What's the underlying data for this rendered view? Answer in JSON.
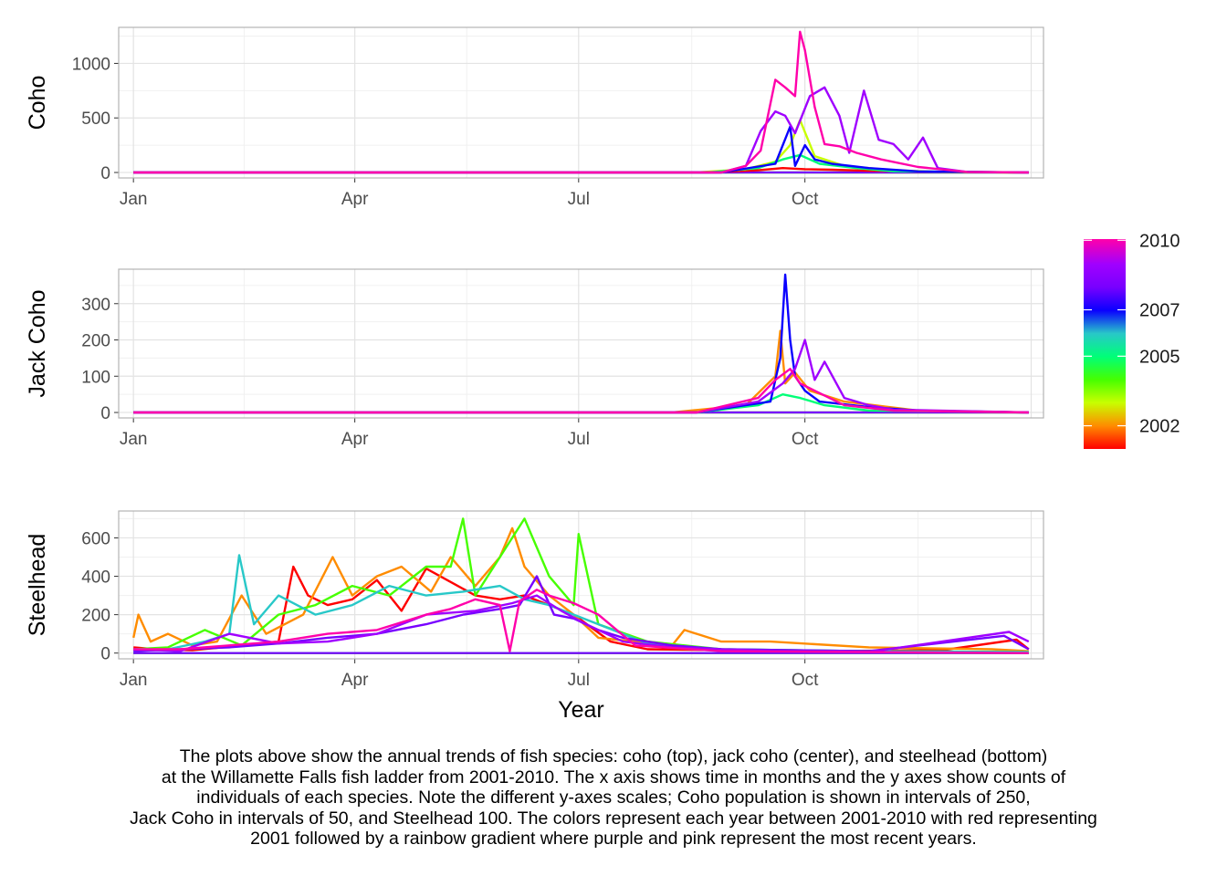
{
  "colors": {
    "y2001": "#ff0000",
    "y2002": "#ff8c00",
    "y2003": "#c8ff00",
    "y2004": "#46ff00",
    "y2005": "#00ff78",
    "y2006": "#28c8c8",
    "y2007": "#0a00ff",
    "y2008": "#7800ff",
    "y2009": "#a000ff",
    "y2010": "#ff00aa"
  },
  "chart_data": [
    {
      "type": "line",
      "ylabel": "Coho",
      "ylim": [
        -50,
        1330
      ],
      "yticks": [
        0,
        500,
        1000
      ],
      "xticks": [
        "Jan",
        "Apr",
        "Jul",
        "Oct"
      ],
      "xtick_days": [
        1,
        91,
        182,
        274
      ],
      "series": [
        {
          "year": 2001,
          "color": "y2001",
          "x": [
            1,
            225,
            240,
            255,
            265,
            274,
            285,
            300,
            330,
            365
          ],
          "y": [
            0,
            0,
            5,
            20,
            40,
            30,
            25,
            15,
            5,
            0
          ]
        },
        {
          "year": 2003,
          "color": "y2003",
          "x": [
            1,
            230,
            250,
            262,
            268,
            272,
            278,
            290,
            310,
            330,
            365
          ],
          "y": [
            0,
            0,
            30,
            100,
            250,
            480,
            150,
            60,
            20,
            5,
            0
          ]
        },
        {
          "year": 2005,
          "color": "y2005",
          "x": [
            1,
            235,
            255,
            265,
            272,
            280,
            295,
            310,
            365
          ],
          "y": [
            0,
            0,
            40,
            120,
            160,
            80,
            40,
            10,
            0
          ]
        },
        {
          "year": 2007,
          "color": "y2007",
          "x": [
            1,
            240,
            262,
            268,
            270,
            274,
            278,
            285,
            300,
            320,
            365
          ],
          "y": [
            0,
            0,
            80,
            420,
            60,
            250,
            120,
            80,
            40,
            10,
            0
          ]
        },
        {
          "year": 2009,
          "color": "y2009",
          "x": [
            1,
            240,
            250,
            256,
            262,
            266,
            270,
            276,
            282,
            288,
            292,
            298,
            304,
            310,
            316,
            322,
            328,
            340,
            365
          ],
          "y": [
            0,
            0,
            60,
            380,
            560,
            520,
            360,
            700,
            780,
            520,
            180,
            750,
            300,
            260,
            120,
            320,
            40,
            5,
            0
          ]
        },
        {
          "year": 2010,
          "color": "y2010",
          "x": [
            1,
            240,
            250,
            256,
            262,
            266,
            270,
            272,
            274,
            278,
            282,
            288,
            295,
            305,
            320,
            340,
            365
          ],
          "y": [
            0,
            0,
            60,
            200,
            850,
            780,
            700,
            1290,
            1120,
            600,
            260,
            240,
            180,
            120,
            50,
            5,
            0
          ]
        }
      ]
    },
    {
      "type": "line",
      "ylabel": "Jack Coho",
      "ylim": [
        -15,
        395
      ],
      "yticks": [
        0,
        100,
        200,
        300
      ],
      "xticks": [
        "Jan",
        "Apr",
        "Jul",
        "Oct"
      ],
      "xtick_days": [
        1,
        91,
        182,
        274
      ],
      "series": [
        {
          "year": 2002,
          "color": "y2002",
          "x": [
            1,
            220,
            250,
            262,
            264,
            266,
            270,
            276,
            290,
            320,
            365
          ],
          "y": [
            0,
            0,
            20,
            100,
            225,
            80,
            110,
            60,
            30,
            5,
            0
          ]
        },
        {
          "year": 2005,
          "color": "y2005",
          "x": [
            1,
            230,
            255,
            265,
            272,
            282,
            300,
            365
          ],
          "y": [
            0,
            0,
            20,
            50,
            40,
            20,
            5,
            0
          ]
        },
        {
          "year": 2007,
          "color": "y2007",
          "x": [
            1,
            230,
            260,
            264,
            266,
            268,
            270,
            274,
            280,
            300,
            320,
            365
          ],
          "y": [
            0,
            0,
            30,
            150,
            380,
            200,
            100,
            60,
            30,
            15,
            5,
            0
          ]
        },
        {
          "year": 2009,
          "color": "y2009",
          "x": [
            1,
            230,
            255,
            265,
            270,
            274,
            278,
            282,
            290,
            300,
            310,
            365
          ],
          "y": [
            0,
            0,
            30,
            80,
            120,
            200,
            90,
            140,
            40,
            20,
            8,
            0
          ]
        },
        {
          "year": 2010,
          "color": "y2010",
          "x": [
            1,
            230,
            255,
            262,
            268,
            272,
            278,
            290,
            310,
            365
          ],
          "y": [
            0,
            0,
            40,
            90,
            120,
            80,
            60,
            20,
            5,
            0
          ]
        }
      ]
    },
    {
      "type": "line",
      "ylabel": "Steelhead",
      "xlabel": "Year",
      "ylim": [
        -30,
        740
      ],
      "yticks": [
        0,
        200,
        400,
        600
      ],
      "xticks": [
        "Jan",
        "Apr",
        "Jul",
        "Oct"
      ],
      "xtick_days": [
        1,
        91,
        182,
        274
      ],
      "series": [
        {
          "year": 2001,
          "color": "y2001",
          "x": [
            1,
            10,
            25,
            45,
            60,
            66,
            72,
            80,
            90,
            100,
            110,
            120,
            140,
            150,
            160,
            170,
            180,
            195,
            210,
            240,
            280,
            330,
            360,
            365
          ],
          "y": [
            30,
            20,
            15,
            40,
            60,
            450,
            300,
            250,
            280,
            380,
            220,
            440,
            300,
            280,
            300,
            250,
            200,
            60,
            20,
            15,
            10,
            15,
            70,
            20
          ]
        },
        {
          "year": 2002,
          "color": "y2002",
          "x": [
            1,
            3,
            8,
            15,
            25,
            35,
            45,
            55,
            70,
            82,
            90,
            100,
            110,
            122,
            130,
            140,
            150,
            155,
            160,
            170,
            180,
            190,
            205,
            220,
            225,
            240,
            260,
            300,
            350,
            365
          ],
          "y": [
            80,
            200,
            60,
            100,
            40,
            60,
            300,
            100,
            200,
            500,
            300,
            400,
            450,
            320,
            500,
            350,
            500,
            650,
            450,
            300,
            200,
            80,
            60,
            40,
            120,
            60,
            60,
            30,
            20,
            10
          ]
        },
        {
          "year": 2004,
          "color": "y2004",
          "x": [
            1,
            15,
            30,
            45,
            60,
            75,
            90,
            105,
            120,
            130,
            135,
            140,
            150,
            160,
            170,
            180,
            182,
            190,
            210,
            240,
            300,
            365
          ],
          "y": [
            20,
            30,
            120,
            40,
            200,
            250,
            350,
            300,
            450,
            450,
            700,
            300,
            500,
            700,
            400,
            250,
            620,
            150,
            60,
            20,
            10,
            5
          ]
        },
        {
          "year": 2006,
          "color": "y2006",
          "x": [
            1,
            15,
            30,
            40,
            44,
            50,
            60,
            75,
            90,
            105,
            120,
            135,
            150,
            160,
            170,
            180,
            190,
            210,
            240,
            300,
            365
          ],
          "y": [
            10,
            20,
            60,
            100,
            510,
            150,
            300,
            200,
            250,
            350,
            300,
            320,
            350,
            280,
            250,
            200,
            150,
            50,
            20,
            10,
            5
          ]
        },
        {
          "year": 2008,
          "color": "y2008",
          "x": [
            1,
            20,
            40,
            60,
            80,
            100,
            120,
            135,
            150,
            158,
            165,
            172,
            180,
            190,
            200,
            220,
            240,
            300,
            355,
            365
          ],
          "y": [
            10,
            20,
            30,
            50,
            80,
            100,
            150,
            200,
            230,
            250,
            400,
            200,
            180,
            120,
            80,
            40,
            20,
            10,
            90,
            20
          ]
        },
        {
          "year": 2009,
          "color": "y2009",
          "x": [
            1,
            20,
            40,
            60,
            80,
            100,
            120,
            140,
            155,
            165,
            175,
            185,
            200,
            220,
            260,
            300,
            357,
            365
          ],
          "y": [
            20,
            10,
            100,
            50,
            60,
            100,
            200,
            220,
            260,
            300,
            220,
            150,
            60,
            30,
            10,
            5,
            110,
            60
          ]
        },
        {
          "year": 2010,
          "color": "y2010",
          "x": [
            1,
            20,
            40,
            60,
            80,
            100,
            120,
            130,
            140,
            150,
            154,
            158,
            165,
            170,
            180,
            190,
            205,
            240,
            300,
            365
          ],
          "y": [
            20,
            20,
            40,
            60,
            100,
            120,
            200,
            230,
            280,
            250,
            10,
            270,
            330,
            300,
            260,
            200,
            40,
            10,
            5,
            0
          ]
        }
      ]
    }
  ],
  "legend": {
    "labels": [
      "2010",
      "2007",
      "2005",
      "2002"
    ],
    "values": [
      2010,
      2007,
      2005,
      2002
    ],
    "range": [
      2001,
      2010.05
    ]
  },
  "caption": {
    "lines": [
      "The plots above show the annual trends of fish species: coho (top), jack coho (center), and steelhead (bottom)",
      "at the Willamette Falls fish ladder from 2001-2010. The x axis shows time in months and the y axes show counts of",
      "individuals of each species. Note the different y-axes scales; Coho population is shown in intervals of 250,",
      "Jack Coho in intervals of 50, and Steelhead 100. The colors represent each year between 2001-2010 with red representing",
      "2001 followed by a rainbow gradient where purple and pink represent the most recent years."
    ]
  }
}
